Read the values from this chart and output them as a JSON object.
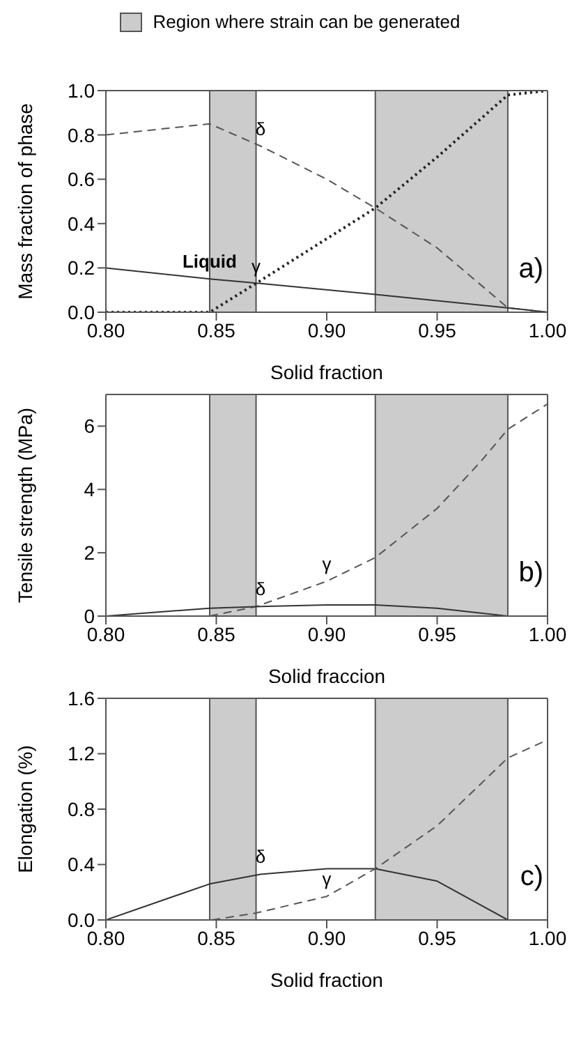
{
  "chart_data": [
    {
      "type": "line",
      "xlabel": "Solid fraction",
      "ylabel": "Mass fraction of phase",
      "xlim": [
        0.8,
        1.0
      ],
      "xticks": [
        {
          "value": 0.8,
          "label": "0.80"
        },
        {
          "value": 0.85,
          "label": "0.85"
        },
        {
          "value": 0.9,
          "label": "0.90"
        },
        {
          "value": 0.95,
          "label": "0.95"
        },
        {
          "value": 1.0,
          "label": "1.00"
        }
      ],
      "ylim": [
        0,
        1.0
      ],
      "yticks": [
        {
          "value": 0,
          "label": "0.0"
        },
        {
          "value": 0.2,
          "label": "0.2"
        },
        {
          "value": 0.4,
          "label": "0.4"
        },
        {
          "value": 0.6,
          "label": "0.6"
        },
        {
          "value": 0.8,
          "label": "0.8"
        },
        {
          "value": 1.0,
          "label": "1.0"
        }
      ],
      "annotations": [
        "a)"
      ],
      "bands": [
        {
          "axis": "x",
          "from": 0.847,
          "to": 0.868,
          "label": "Region  where strain can be generated",
          "color": "#cccccc"
        },
        {
          "axis": "x",
          "from": 0.922,
          "to": 0.982,
          "color": "#cccccc"
        }
      ],
      "series": [
        {
          "name": "δ",
          "color": "#555555",
          "line_style": "dashed",
          "x": [
            0.8,
            0.847,
            0.87,
            0.9,
            0.922,
            0.95,
            0.982,
            1.0
          ],
          "values": [
            0.8,
            0.85,
            0.75,
            0.6,
            0.47,
            0.29,
            0.02,
            0.0
          ]
        },
        {
          "name": "γ",
          "color": "#222222",
          "line_style": "dotted",
          "x": [
            0.8,
            0.847,
            0.868,
            0.922,
            0.95,
            0.982,
            1.0
          ],
          "values": [
            0.0,
            0.0,
            0.13,
            0.47,
            0.7,
            0.98,
            1.0
          ]
        },
        {
          "name": "Liquid",
          "color": "#333333",
          "line_style": "solid",
          "x": [
            0.8,
            0.847,
            0.87,
            0.922,
            0.982,
            1.0
          ],
          "values": [
            0.2,
            0.15,
            0.13,
            0.08,
            0.02,
            0.0
          ]
        }
      ]
    },
    {
      "type": "line",
      "xlabel": "Solid fraccion",
      "ylabel": "Tensile strength (MPa)",
      "xlim": [
        0.8,
        1.0
      ],
      "xticks": [
        {
          "value": 0.8,
          "label": "0.80"
        },
        {
          "value": 0.85,
          "label": "0.85"
        },
        {
          "value": 0.9,
          "label": "0.90"
        },
        {
          "value": 0.95,
          "label": "0.95"
        },
        {
          "value": 1.0,
          "label": "1.00"
        }
      ],
      "ylim": [
        0,
        7
      ],
      "yticks": [
        0,
        2,
        4,
        6
      ],
      "annotations": [
        "b)"
      ],
      "bands": [
        {
          "axis": "x",
          "from": 0.847,
          "to": 0.868,
          "color": "#cccccc"
        },
        {
          "axis": "x",
          "from": 0.922,
          "to": 0.982,
          "color": "#cccccc"
        }
      ],
      "series": [
        {
          "name": "γ",
          "color": "#555555",
          "line_style": "dashed",
          "x": [
            0.847,
            0.868,
            0.9,
            0.922,
            0.95,
            0.97,
            0.982,
            1.0
          ],
          "values": [
            0.0,
            0.3,
            1.1,
            1.85,
            3.4,
            4.9,
            5.9,
            6.7
          ]
        },
        {
          "name": "δ",
          "color": "#333333",
          "line_style": "solid",
          "x": [
            0.8,
            0.847,
            0.87,
            0.9,
            0.922,
            0.95,
            0.982
          ],
          "values": [
            0.0,
            0.25,
            0.3,
            0.35,
            0.35,
            0.25,
            0.0
          ]
        }
      ]
    },
    {
      "type": "line",
      "xlabel": "Solid fraction",
      "ylabel": "Elongation (%)",
      "xlim": [
        0.8,
        1.0
      ],
      "xticks": [
        {
          "value": 0.8,
          "label": "0.80"
        },
        {
          "value": 0.85,
          "label": "0.85"
        },
        {
          "value": 0.9,
          "label": "0.90"
        },
        {
          "value": 0.95,
          "label": "0.95"
        },
        {
          "value": 1.0,
          "label": "1.00"
        }
      ],
      "ylim": [
        0,
        1.6
      ],
      "yticks": [
        {
          "value": 0,
          "label": "0.0"
        },
        {
          "value": 0.4,
          "label": "0.4"
        },
        {
          "value": 0.8,
          "label": "0.8"
        },
        {
          "value": 1.2,
          "label": "1.2"
        },
        {
          "value": 1.6,
          "label": "1.6"
        }
      ],
      "annotations": [
        "c)"
      ],
      "bands": [
        {
          "axis": "x",
          "from": 0.847,
          "to": 0.868,
          "color": "#cccccc"
        },
        {
          "axis": "x",
          "from": 0.922,
          "to": 0.982,
          "color": "#cccccc"
        }
      ],
      "series": [
        {
          "name": "δ",
          "color": "#333333",
          "line_style": "solid",
          "x": [
            0.8,
            0.847,
            0.87,
            0.9,
            0.922,
            0.95,
            0.982
          ],
          "values": [
            0.0,
            0.26,
            0.33,
            0.37,
            0.37,
            0.28,
            0.0
          ]
        },
        {
          "name": "γ",
          "color": "#555555",
          "line_style": "dashed",
          "x": [
            0.848,
            0.868,
            0.9,
            0.922,
            0.95,
            0.982,
            1.0
          ],
          "values": [
            0.0,
            0.05,
            0.17,
            0.37,
            0.68,
            1.17,
            1.3
          ]
        }
      ]
    }
  ]
}
